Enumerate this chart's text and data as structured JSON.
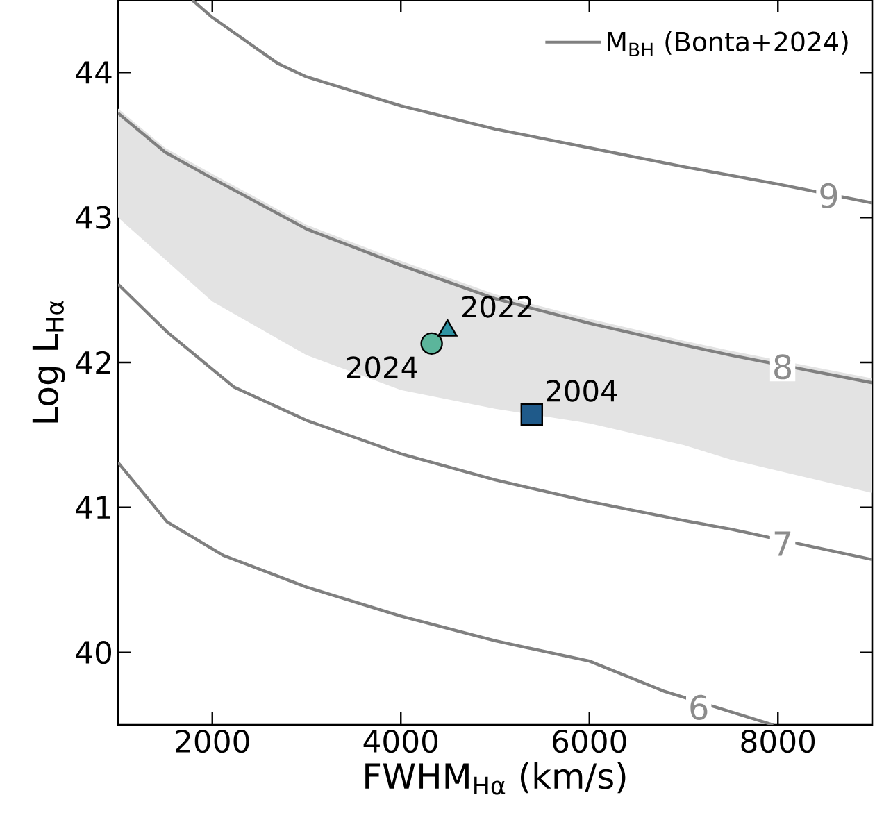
{
  "chart_data": {
    "type": "line",
    "xlabel": "FWHM$_{Hα}$ (km/s)",
    "ylabel": "Log L$_{Hα}$",
    "xlim": [
      1000,
      9000
    ],
    "ylim": [
      39.5,
      44.5
    ],
    "xticks": [
      2000,
      4000,
      6000,
      8000
    ],
    "yticks": [
      40,
      41,
      42,
      43,
      44
    ],
    "legend": "top right",
    "grid": false,
    "series": [
      {
        "name": "M$_{BH}$ (Bonta+2024)",
        "color": "#808080",
        "x": [
          1787,
          2000,
          2700,
          3000,
          4000,
          5000,
          6000,
          7000,
          8000,
          9000
        ],
        "values": [
          44.5,
          44.38,
          44.06,
          43.97,
          43.77,
          43.61,
          43.48,
          43.35,
          43.23,
          43.1
        ]
      },
      {
        "color": "#808080",
        "x": [
          1000,
          1500,
          2000,
          3000,
          4000,
          5000,
          6000,
          7000,
          7500,
          9000
        ],
        "values": [
          43.72,
          43.45,
          43.27,
          42.92,
          42.67,
          42.44,
          42.27,
          42.12,
          42.05,
          41.86
        ],
        "lower": [
          43.0,
          42.71,
          42.42,
          42.05,
          41.81,
          41.68,
          41.58,
          41.43,
          41.33,
          41.1
        ],
        "upper": [
          43.75,
          43.48,
          43.3,
          42.95,
          42.7,
          42.47,
          42.3,
          42.15,
          42.08,
          41.89
        ]
      },
      {
        "color": "#808080",
        "x": [
          1000,
          1520,
          2230,
          3000,
          4000,
          5000,
          6000,
          7000,
          7500,
          9000
        ],
        "values": [
          42.54,
          42.21,
          41.83,
          41.6,
          41.37,
          41.19,
          41.04,
          40.91,
          40.85,
          40.64
        ]
      },
      {
        "color": "#808080",
        "x": [
          1000,
          1520,
          2113,
          3000,
          4000,
          5000,
          6000,
          6800,
          7950
        ],
        "values": [
          41.31,
          40.9,
          40.67,
          40.45,
          40.25,
          40.08,
          39.94,
          39.73,
          39.5
        ]
      },
      {
        "type": "scatter",
        "name": "2024",
        "marker": "circle",
        "color": "#5bb59b",
        "x": [
          4327
        ],
        "values": [
          42.13
        ]
      },
      {
        "type": "scatter",
        "name": "2022",
        "marker": "triangle",
        "color": "#2f93a3",
        "x": [
          4495
        ],
        "values": [
          42.22
        ]
      },
      {
        "type": "scatter",
        "name": "2004",
        "marker": "square",
        "color": "#1f5a8a",
        "x": [
          5389
        ],
        "values": [
          41.64
        ]
      }
    ],
    "annotations": [
      {
        "text": "9",
        "x": 8540,
        "y": 43.15
      },
      {
        "text": "8",
        "x": 8050,
        "y": 41.97
      },
      {
        "text": "7",
        "x": 8050,
        "y": 40.75
      },
      {
        "text": "6",
        "x": 7160,
        "y": 39.62
      }
    ]
  }
}
